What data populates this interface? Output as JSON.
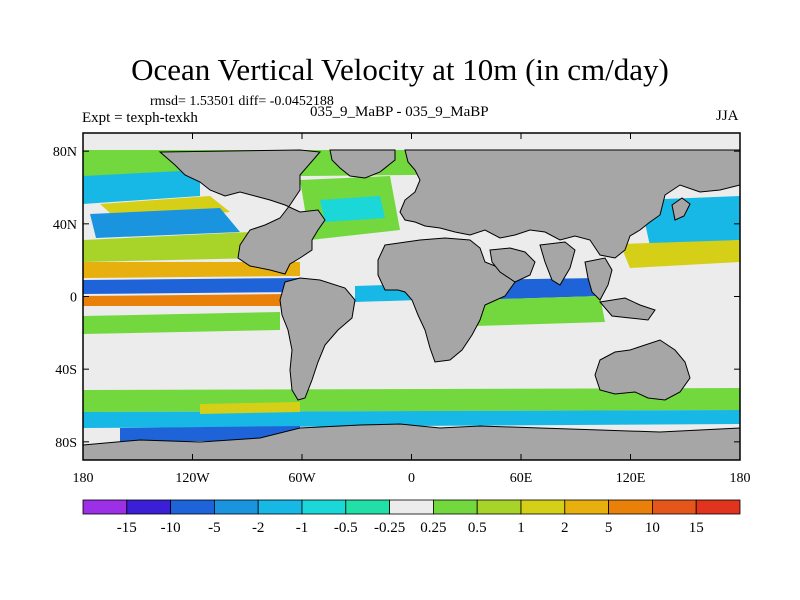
{
  "chart_data": {
    "type": "heatmap",
    "title": "Ocean Vertical Velocity at 10m (in cm/day)",
    "stats_text": "rmsd= 1.53501 diff= -0.0452188",
    "expt_text": "Expt = texph-texkh",
    "experiment_label": "035_9_MaBP - 035_9_MaBP",
    "season": "JJA",
    "x_ticks": [
      "180",
      "120W",
      "60W",
      "0",
      "60E",
      "120E",
      "180"
    ],
    "x_tick_values": [
      -180,
      -120,
      -60,
      0,
      60,
      120,
      180
    ],
    "y_ticks": [
      "80N",
      "40N",
      "0",
      "40S",
      "80S"
    ],
    "y_tick_values": [
      80,
      40,
      0,
      -40,
      -80
    ],
    "xlim": [
      -180,
      180
    ],
    "ylim": [
      -90,
      90
    ],
    "colorbar": {
      "levels": [
        "-15",
        "-10",
        "-5",
        "-2",
        "-1",
        "-0.5",
        "-0.25",
        "0.25",
        "0.5",
        "1",
        "2",
        "5",
        "10",
        "15"
      ],
      "colors": [
        "#9b30e6",
        "#3a1fd6",
        "#1e63d8",
        "#1b94e0",
        "#17b8e6",
        "#1bd7d7",
        "#22dfa8",
        "#ececec",
        "#72d83e",
        "#a8d42a",
        "#d6cf17",
        "#e8b00f",
        "#e88009",
        "#e4561a",
        "#e0341e"
      ]
    },
    "land_color": "#a6a6a6"
  }
}
